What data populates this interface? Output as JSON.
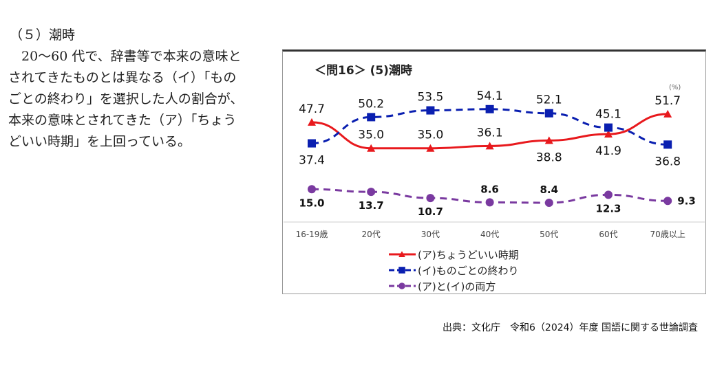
{
  "text": {
    "heading": "（５）潮時",
    "body_lines": [
      "　20～60 代で、辞書等で本来の意味と",
      "されてきたものとは異なる（イ）「もの",
      "ごとの終わり」を選択した人の割合が、",
      "本来の意味とされてきた（ア）「ちょう",
      "どいい時期」を上回っている。"
    ]
  },
  "source": "出典：文化庁　令和6（2024）年度 国語に関する世論調査",
  "chart_data": {
    "type": "line",
    "title": "＜問16＞ (5)潮時",
    "unit": "(%)",
    "categories": [
      "16-19歳",
      "20代",
      "30代",
      "40代",
      "50代",
      "60代",
      "70歳以上"
    ],
    "grid": false,
    "legend_placement": "bottom-center",
    "series": [
      {
        "name": "(ア)ちょうどいい時期",
        "color": "#e8191d",
        "marker": "triangle",
        "dash": "solid",
        "values": [
          47.7,
          35.0,
          35.0,
          36.1,
          38.8,
          41.9,
          51.7
        ],
        "label_pos": [
          "above",
          "above",
          "above",
          "above",
          "below",
          "below",
          "above"
        ]
      },
      {
        "name": "(イ)ものごとの終わり",
        "color": "#0a1fb0",
        "marker": "square",
        "dash": "dashed",
        "values": [
          37.4,
          50.2,
          53.5,
          54.1,
          52.1,
          45.1,
          36.8
        ],
        "label_pos": [
          "below",
          "above",
          "above",
          "above",
          "above",
          "above",
          "below"
        ]
      },
      {
        "name": "(ア)と(イ)の両方",
        "color": "#7a3aa0",
        "marker": "circle",
        "dash": "dashed",
        "values": [
          15.0,
          13.7,
          10.7,
          8.6,
          8.4,
          12.3,
          9.3
        ],
        "label_pos": [
          "below",
          "below",
          "below",
          "above",
          "above",
          "below",
          "right"
        ]
      }
    ]
  }
}
